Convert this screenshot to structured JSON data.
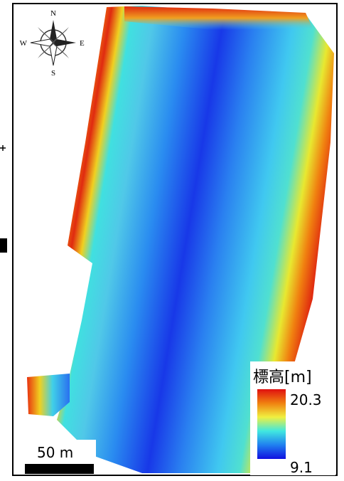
{
  "compass": {
    "north": "N",
    "east": "E",
    "south": "S",
    "west": "W"
  },
  "legend": {
    "title": "標高[m]",
    "max": "20.3",
    "min": "9.1"
  },
  "scale_bar": {
    "label": "50 m"
  }
}
